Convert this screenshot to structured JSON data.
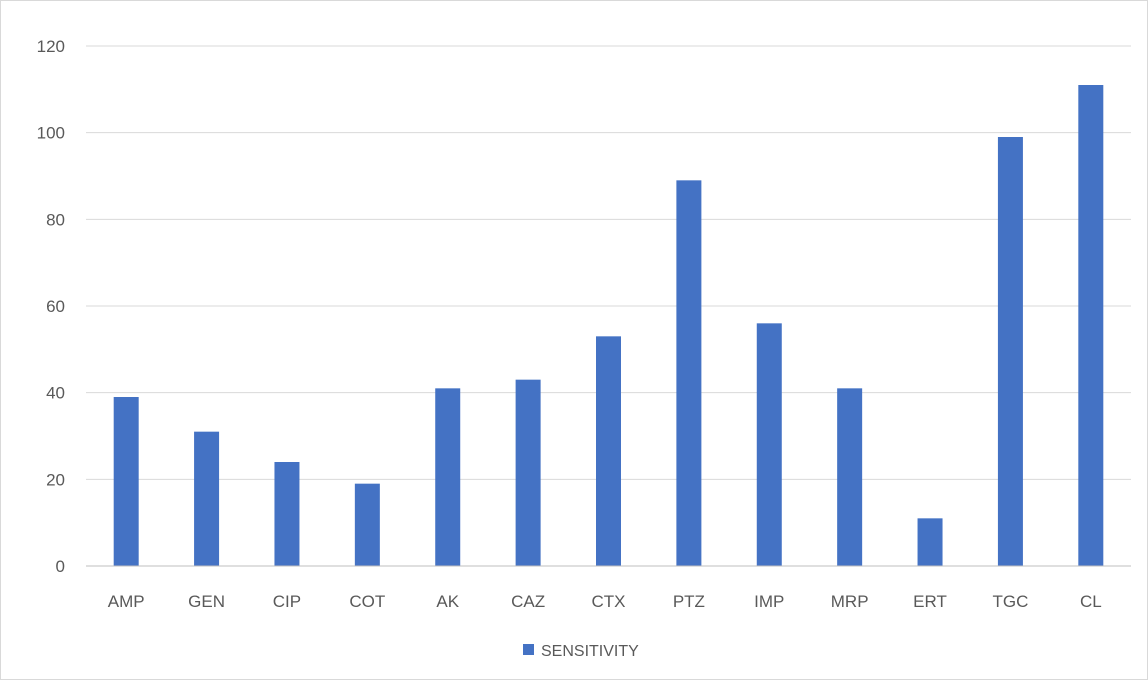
{
  "chart_data": {
    "type": "bar",
    "categories": [
      "AMP",
      "GEN",
      "CIP",
      "COT",
      "AK",
      "CAZ",
      "CTX",
      "PTZ",
      "IMP",
      "MRP",
      "ERT",
      "TGC",
      "CL"
    ],
    "series": [
      {
        "name": "SENSITIVITY",
        "values": [
          39,
          31,
          24,
          19,
          41,
          43,
          53,
          89,
          56,
          41,
          11,
          99,
          111
        ],
        "color": "#4472c4"
      }
    ],
    "ylim": [
      0,
      120
    ],
    "yticks": [
      0,
      20,
      40,
      60,
      80,
      100,
      120
    ],
    "grid": true,
    "legend_position": "bottom",
    "gridline_color": "#d9d9d9",
    "axis_color": "#bfbfbf"
  }
}
